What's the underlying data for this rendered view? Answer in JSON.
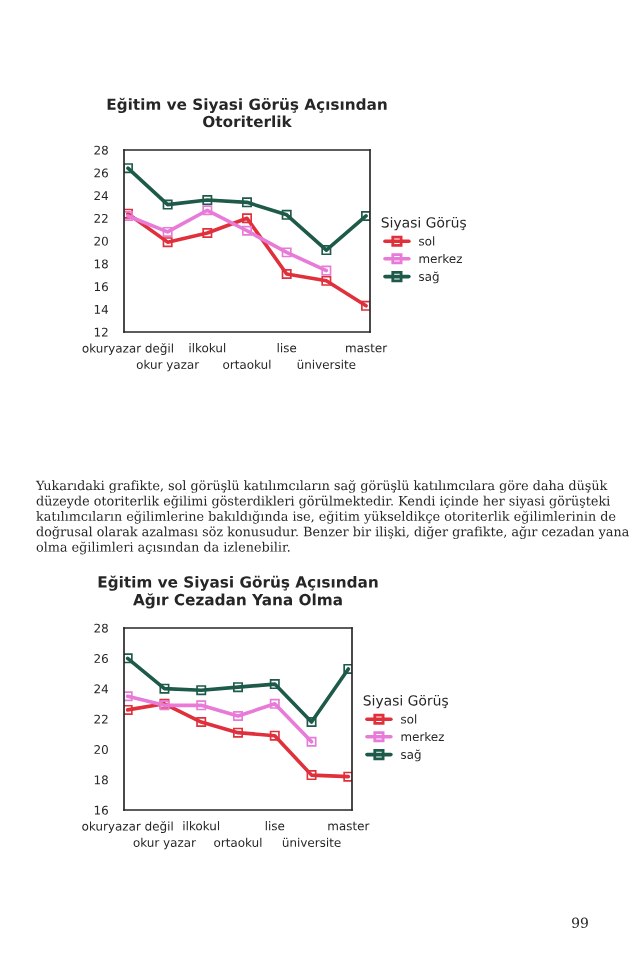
{
  "chart_data": [
    {
      "type": "line",
      "title": "Eğitim ve Siyasi Görüş Açısından\nOtoriterlik",
      "legend_title": "Siyasi Görüş",
      "legend": "right",
      "marker": "square",
      "line_style": "solid",
      "categories": [
        "okuryazar değil",
        "okur yazar",
        "ilkokul",
        "ortaokul",
        "lise",
        "üniversite",
        "master"
      ],
      "ylim": [
        12,
        28
      ],
      "yticks": [
        12,
        14,
        16,
        18,
        20,
        22,
        24,
        26,
        28
      ],
      "series": [
        {
          "name": "sol",
          "color": "#e0303c",
          "values": [
            22.4,
            19.9,
            20.7,
            22.0,
            17.1,
            16.5,
            14.3
          ]
        },
        {
          "name": "merkez",
          "color": "#e87ad8",
          "values": [
            22.2,
            20.8,
            22.7,
            20.9,
            19.0,
            17.4,
            null
          ]
        },
        {
          "name": "sağ",
          "color": "#1e5a4a",
          "values": [
            26.4,
            23.2,
            23.6,
            23.4,
            22.3,
            19.2,
            22.2
          ]
        }
      ],
      "annotations": [
        "Yukarıdaki grafikte, sol görüşlü katılımcıların sağ görüşlü katılımcılara göre daha düşük düzeyde otoriterlik eğilimi gösterdikleri görülmektedir. Kendi içinde her siyasi görüşteki katılımcıların eğilimlerine bakıldığında ise, eğitim yükseldikçe otoriterlik eğilimlerinin de doğrusal olarak azalması söz konusudur. Benzer bir ilişki, diğer grafikte, ağır cezadan yana olma eğilimleri açısından da izlenebilir."
      ]
    },
    {
      "type": "line",
      "title": "Eğitim ve Siyasi Görüş Açısından\nAğır Cezadan Yana Olma",
      "legend_title": "Siyasi Görüş",
      "legend": "right",
      "marker": "square",
      "line_style": "solid",
      "categories": [
        "okuryazar değil",
        "okur yazar",
        "ilkokul",
        "ortaokul",
        "lise",
        "üniversite",
        "master"
      ],
      "ylim": [
        16,
        28
      ],
      "yticks": [
        16,
        18,
        20,
        22,
        24,
        26,
        28
      ],
      "series": [
        {
          "name": "sol",
          "color": "#e0303c",
          "values": [
            22.6,
            23.0,
            21.8,
            21.1,
            20.9,
            18.3,
            18.2
          ]
        },
        {
          "name": "merkez",
          "color": "#e87ad8",
          "values": [
            23.5,
            22.9,
            22.9,
            22.2,
            23.0,
            20.5,
            null
          ]
        },
        {
          "name": "sağ",
          "color": "#1e5a4a",
          "values": [
            26.0,
            24.0,
            23.9,
            24.1,
            24.3,
            21.8,
            25.3
          ]
        }
      ],
      "annotations": [
        "99"
      ]
    }
  ]
}
